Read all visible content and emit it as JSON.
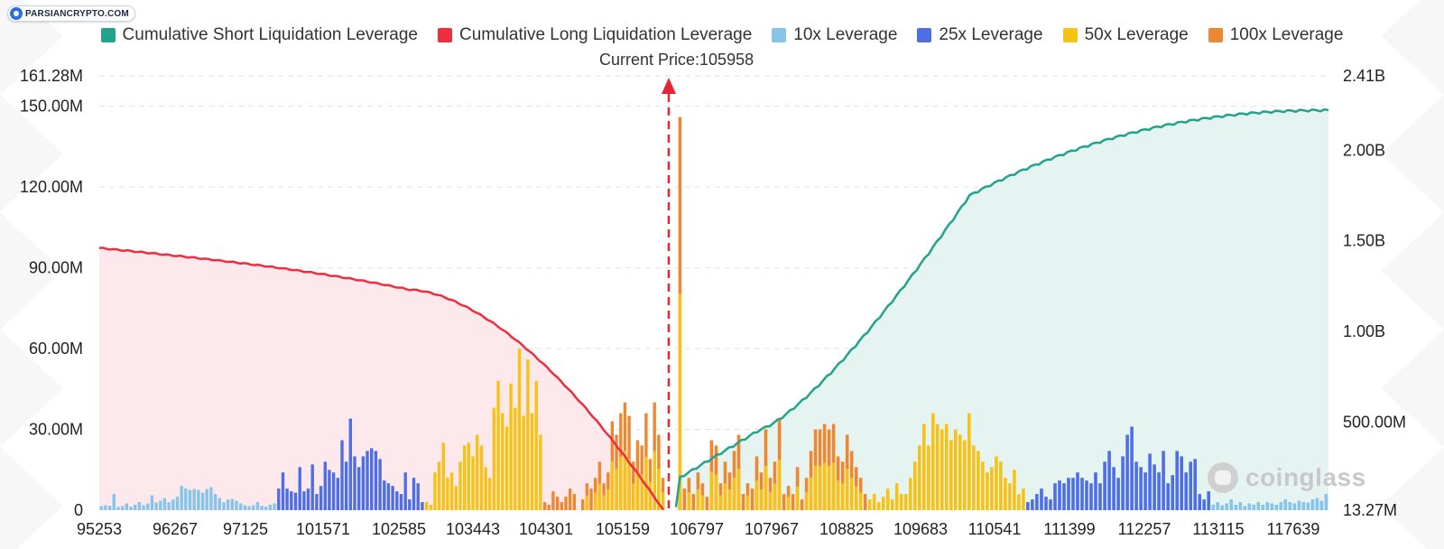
{
  "watermark": "PARSIANCRYPTO.COM",
  "brand": "coinglass",
  "current_price_text": "Current Price:105958",
  "colors": {
    "short": "#21a38d",
    "long": "#ee2e3f",
    "lev10": "#87c4ea",
    "lev25": "#4e6ee6",
    "lev50": "#f6c216",
    "lev100": "#ee8731"
  },
  "chart_data": {
    "type": "bar",
    "title": "",
    "legend": [
      {
        "name": "Cumulative Short Liquidation Leverage",
        "color": "#21a38d"
      },
      {
        "name": "Cumulative Long Liquidation Leverage",
        "color": "#ee2e3f"
      },
      {
        "name": "10x Leverage",
        "color": "#87c4ea"
      },
      {
        "name": "25x Leverage",
        "color": "#4e6ee6"
      },
      {
        "name": "50x Leverage",
        "color": "#f6c216"
      },
      {
        "name": "100x Leverage",
        "color": "#ee8731"
      }
    ],
    "current_price": 105958,
    "x_ticks": [
      "95253",
      "96267",
      "97125",
      "101571",
      "102585",
      "103443",
      "104301",
      "105159",
      "106797",
      "107967",
      "108825",
      "109683",
      "110541",
      "111399",
      "112257",
      "113115",
      "117639"
    ],
    "y_left": {
      "min": 0,
      "max": 161.28,
      "unit": "M",
      "ticks": [
        0,
        30,
        60,
        90,
        120,
        150,
        161.28
      ],
      "tick_labels": [
        "0",
        "30.00M",
        "60.00M",
        "90.00M",
        "120.00M",
        "150.00M",
        "161.28M"
      ]
    },
    "y_right": {
      "min": 13.27,
      "max": 2410,
      "unit": "M",
      "ticks": [
        13.27,
        500,
        1000,
        1500,
        2000,
        2410
      ],
      "tick_labels": [
        "13.27M",
        "500.00M",
        "1.00B",
        "1.50B",
        "2.00B",
        "2.41B"
      ]
    },
    "bars_left": [
      {
        "lev": "lev10",
        "v": [
          1.5,
          1.8,
          1.6,
          6,
          1.2,
          1.5,
          2.5,
          1.3,
          2,
          3,
          1.8,
          2.5,
          5.5,
          2.8,
          3.5,
          4.5,
          3,
          4,
          5,
          9,
          8,
          7.5,
          7.8,
          7.5,
          6.5,
          7.8,
          8.5,
          6,
          4.5,
          3,
          4,
          4.2,
          3.5,
          2.5,
          1.8,
          1.5,
          1.8,
          3,
          1.6,
          1.3,
          2,
          2.5
        ]
      },
      {
        "lev": "lev25",
        "v": [
          8,
          14,
          8,
          7,
          6.5,
          16,
          7,
          8,
          17,
          6,
          9,
          18,
          15,
          14,
          12,
          26,
          18,
          34,
          20,
          16,
          20,
          22,
          23,
          22,
          19,
          11,
          10,
          9,
          7,
          6,
          14,
          4,
          12,
          10,
          3
        ]
      },
      {
        "lev": "lev50",
        "v": [
          3,
          2,
          14,
          18,
          25,
          12,
          14,
          9,
          18,
          24,
          25,
          20,
          28,
          24,
          16,
          12,
          38,
          48,
          36,
          31,
          47,
          38,
          60,
          35,
          56,
          36,
          48,
          28
        ]
      },
      {
        "lev": "lev100",
        "v": [
          3,
          2,
          7,
          5,
          3,
          5,
          8,
          6,
          0,
          4,
          10,
          8,
          12,
          18,
          10,
          14,
          33,
          28,
          36,
          40,
          35,
          18,
          26,
          24,
          36,
          19,
          40,
          28,
          12
        ]
      }
    ],
    "bars_right": [
      {
        "lev": "lev100",
        "v": [
          146,
          8,
          12,
          6,
          14,
          10,
          5,
          26,
          24,
          10,
          18,
          14,
          22,
          28,
          6,
          10,
          8,
          20,
          14,
          30,
          12,
          18,
          34,
          6,
          9,
          6,
          16,
          4,
          12,
          22,
          30,
          30,
          32,
          30,
          32,
          20,
          18,
          28,
          22,
          16,
          12,
          6
        ]
      },
      {
        "lev": "lev50",
        "v": [
          4,
          6,
          3,
          5,
          8,
          4,
          10,
          6,
          6,
          12,
          18,
          24,
          32,
          24,
          36,
          32,
          30,
          32,
          26,
          30,
          28,
          26,
          36,
          24,
          22,
          18,
          14,
          16,
          20,
          18,
          12,
          10,
          15,
          6,
          8
        ]
      },
      {
        "lev": "lev25",
        "v": [
          3,
          4,
          6,
          8,
          5,
          4,
          10,
          11,
          10,
          12,
          12,
          14,
          12,
          11,
          10,
          14,
          10,
          18,
          22,
          16,
          12,
          20,
          28,
          31,
          18,
          16,
          14,
          21,
          17,
          14,
          22,
          10,
          13,
          22,
          20,
          14,
          18,
          19,
          6,
          4,
          7
        ]
      },
      {
        "lev": "lev10",
        "v": [
          2,
          3,
          1.8,
          2.5,
          4,
          2,
          3,
          1.5,
          2.5,
          2,
          3,
          2,
          3,
          2.5,
          2,
          3,
          4,
          3,
          2.5,
          3.5,
          3,
          2.8,
          4,
          4.5,
          3.5,
          6
        ]
      }
    ]
  }
}
